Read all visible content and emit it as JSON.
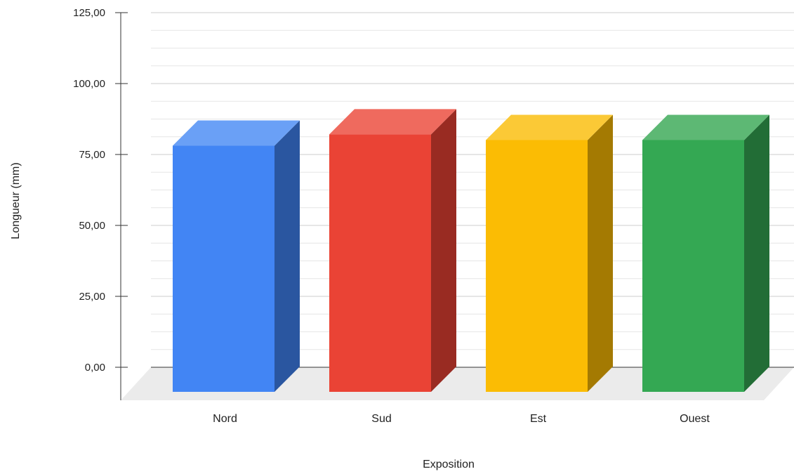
{
  "chart_data": {
    "type": "bar",
    "title": "",
    "xlabel": "Exposition",
    "ylabel": "Longueur (mm)",
    "categories": [
      "Nord",
      "Sud",
      "Est",
      "Ouest"
    ],
    "values": [
      87,
      91,
      89,
      89
    ],
    "ylim": [
      0,
      125
    ],
    "yticks": [
      "0,00",
      "25,00",
      "50,00",
      "75,00",
      "100,00",
      "125,00"
    ],
    "grid": true,
    "three_d": true,
    "colors": {
      "front": [
        "#4285f4",
        "#ea4335",
        "#fbbc04",
        "#34a853"
      ],
      "side": [
        "#2a56a0",
        "#992b22",
        "#a47a02",
        "#226d36"
      ],
      "top": [
        "#6aa0f6",
        "#ef6a5e",
        "#fbc936",
        "#5db874"
      ],
      "grid_major": "#cccccc",
      "grid_minor": "#e6e6e6",
      "floor": "#ebebeb",
      "axis": "#333333"
    }
  }
}
